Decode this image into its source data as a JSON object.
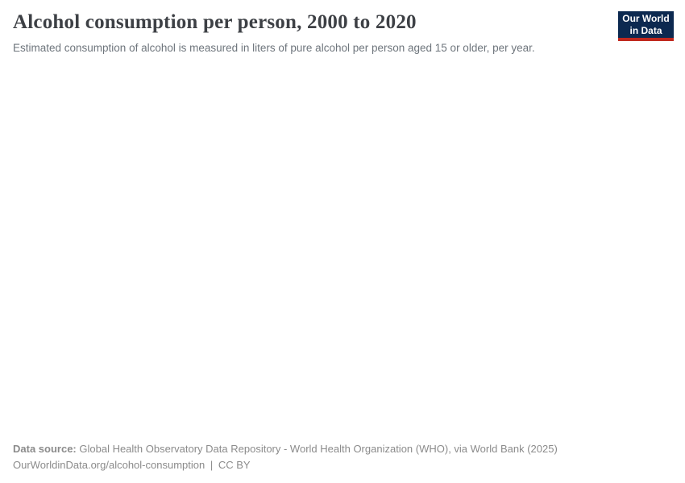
{
  "header": {
    "title": "Alcohol consumption per person, 2000 to 2020",
    "subtitle": "Estimated consumption of alcohol is measured in liters of pure alcohol per person aged 15 or older, per year.",
    "logo": {
      "line1": "Our World",
      "line2": "in Data"
    }
  },
  "footer": {
    "data_source_label": "Data source:",
    "data_source_value": "Global Health Observatory Data Repository - World Health Organization (WHO), via World Bank (2025)",
    "url": "OurWorldinData.org/alcohol-consumption",
    "separator": "|",
    "license": "CC BY"
  },
  "colors": {
    "title_text": "#3d4045",
    "subtitle_text": "#6e757c",
    "footer_text": "#8b8b8b",
    "logo_background": "#0c2950",
    "logo_stripe": "#c0281e",
    "logo_text": "#ffffff",
    "page_background": "#ffffff"
  },
  "chart_data": {
    "type": "line",
    "title": "Alcohol consumption per person, 2000 to 2020",
    "subtitle": "Estimated consumption of alcohol is measured in liters of pure alcohol per person aged 15 or older, per year.",
    "x_range_implied_by_title": [
      2000,
      2020
    ],
    "series": [],
    "plot_area_rendered": false
  }
}
